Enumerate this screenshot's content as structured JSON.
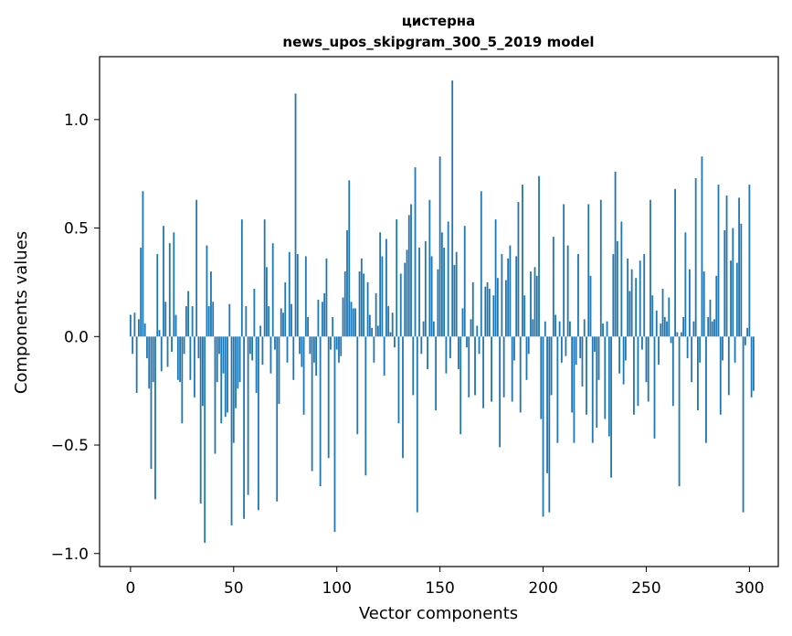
{
  "chart_data": {
    "type": "bar",
    "title": "цистерна",
    "subtitle": "news_upos_skipgram_300_5_2019 model",
    "xlabel": "Vector components",
    "ylabel": "Components values",
    "xlim": [
      -15,
      314
    ],
    "ylim": [
      -1.06,
      1.29
    ],
    "xticks": [
      0,
      50,
      100,
      150,
      200,
      250,
      300
    ],
    "xtick_labels": [
      "0",
      "50",
      "100",
      "150",
      "200",
      "250",
      "300"
    ],
    "yticks": [
      -1.0,
      -0.5,
      0.0,
      0.5,
      1.0
    ],
    "ytick_labels": [
      "−1.0",
      "−0.5",
      "0.0",
      "0.5",
      "1.0"
    ],
    "grid": false,
    "bar_color": "#1f77b4",
    "series": [
      {
        "values": [
          0.1,
          -0.08,
          0.11,
          -0.26,
          0.08,
          0.41,
          0.67,
          0.06,
          -0.1,
          -0.24,
          -0.61,
          -0.21,
          -0.75,
          0.38,
          0.03,
          -0.16,
          0.51,
          0.16,
          -0.14,
          0.43,
          -0.07,
          0.48,
          0.1,
          -0.2,
          -0.21,
          -0.4,
          -0.08,
          0.14,
          0.21,
          -0.2,
          0.14,
          -0.28,
          0.63,
          -0.1,
          -0.77,
          -0.32,
          -0.95,
          0.42,
          0.14,
          0.3,
          0.16,
          -0.54,
          -0.21,
          -0.08,
          -0.4,
          -0.17,
          -0.37,
          -0.35,
          0.15,
          -0.87,
          -0.49,
          -0.33,
          -0.24,
          -0.21,
          0.54,
          -0.84,
          0.14,
          -0.73,
          -0.08,
          -0.11,
          0.22,
          -0.26,
          -0.8,
          0.05,
          -0.13,
          0.54,
          0.32,
          0.14,
          -0.17,
          0.43,
          -0.06,
          -0.76,
          -0.31,
          0.13,
          0.11,
          0.25,
          -0.12,
          0.39,
          0.15,
          -0.2,
          1.12,
          0.38,
          -0.08,
          -0.14,
          -0.36,
          0.37,
          0.09,
          -0.08,
          -0.62,
          -0.12,
          -0.18,
          0.17,
          -0.69,
          0.16,
          0.2,
          0.36,
          -0.56,
          -0.06,
          0.09,
          -0.9,
          -0.06,
          -0.12,
          -0.09,
          0.18,
          0.3,
          0.49,
          0.72,
          0.16,
          0.13,
          0.13,
          -0.45,
          0.3,
          0.36,
          0.29,
          -0.64,
          0.25,
          0.1,
          0.04,
          -0.12,
          0.2,
          0.05,
          0.48,
          0.37,
          -0.18,
          0.45,
          0.14,
          0.02,
          0.11,
          -0.05,
          0.54,
          -0.4,
          0.29,
          -0.56,
          0.34,
          0.4,
          0.56,
          0.61,
          -0.27,
          0.78,
          -0.81,
          0.41,
          -0.08,
          0.07,
          0.44,
          -0.15,
          0.63,
          0.37,
          0.07,
          -0.34,
          0.31,
          0.83,
          0.48,
          0.41,
          -0.17,
          0.53,
          -0.1,
          1.18,
          0.33,
          0.39,
          -0.15,
          -0.45,
          0.13,
          0.51,
          -0.05,
          -0.28,
          0.08,
          0.25,
          -0.27,
          0.05,
          -0.08,
          0.67,
          -0.33,
          0.23,
          0.25,
          0.22,
          -0.3,
          0.19,
          0.54,
          0.27,
          -0.51,
          0.38,
          -0.28,
          0.26,
          0.36,
          0.42,
          -0.3,
          -0.11,
          0.37,
          0.62,
          -0.35,
          0.7,
          0.19,
          -0.2,
          -0.08,
          0.3,
          0.08,
          0.32,
          0.28,
          0.74,
          -0.38,
          -0.83,
          0.07,
          -0.63,
          -0.81,
          -0.27,
          0.46,
          0.1,
          -0.49,
          0.07,
          -0.12,
          0.61,
          -0.09,
          0.42,
          0.07,
          -0.35,
          -0.49,
          -0.13,
          0.38,
          -0.1,
          -0.23,
          0.08,
          -0.36,
          0.61,
          0.28,
          -0.49,
          -0.07,
          -0.42,
          -0.2,
          0.63,
          0.06,
          -0.38,
          0.07,
          -0.46,
          -0.65,
          0.38,
          0.76,
          0.44,
          -0.17,
          0.53,
          -0.22,
          -0.11,
          0.36,
          0.21,
          0.31,
          -0.36,
          0.27,
          -0.32,
          0.35,
          -0.06,
          0.38,
          -0.21,
          -0.3,
          0.63,
          0.19,
          -0.47,
          0.12,
          -0.13,
          0.06,
          0.22,
          0.09,
          0.07,
          0.18,
          -0.03,
          -0.32,
          0.68,
          0.02,
          -0.69,
          0.02,
          0.09,
          0.48,
          -0.1,
          0.31,
          -0.21,
          0.07,
          0.73,
          -0.34,
          -0.12,
          0.83,
          0.3,
          -0.49,
          0.09,
          0.17,
          0.07,
          0.08,
          0.28,
          0.7,
          -0.36,
          -0.11,
          0.49,
          0.65,
          -0.27,
          0.35,
          0.5,
          -0.12,
          0.34,
          0.64,
          0.52,
          -0.81,
          -0.04,
          0.04,
          0.7,
          -0.28,
          -0.25
        ]
      }
    ]
  }
}
